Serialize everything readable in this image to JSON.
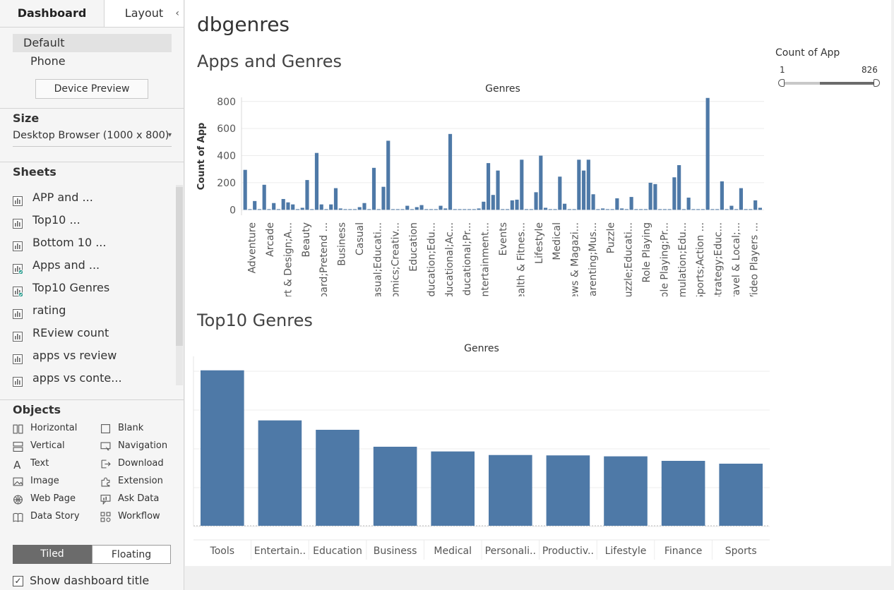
{
  "sidebar": {
    "tabs": {
      "dashboard": "Dashboard",
      "layout": "Layout"
    },
    "devices": [
      "Default",
      "Phone"
    ],
    "device_preview_label": "Device Preview",
    "size": {
      "heading": "Size",
      "value": "Desktop Browser (1000 x 800)"
    },
    "sheets_heading": "Sheets",
    "sheets": [
      {
        "label": "APP and ...",
        "used": false
      },
      {
        "label": "Top10 ...",
        "used": false
      },
      {
        "label": "Bottom 10 ...",
        "used": false
      },
      {
        "label": "Apps and ...",
        "used": true
      },
      {
        "label": "Top10 Genres",
        "used": true
      },
      {
        "label": "rating",
        "used": false
      },
      {
        "label": "REview count",
        "used": false
      },
      {
        "label": "apps vs review",
        "used": false
      },
      {
        "label": "apps vs conte...",
        "used": false
      }
    ],
    "objects_heading": "Objects",
    "objects_left": [
      {
        "label": "Horizontal",
        "icon": "horizontal-container-icon"
      },
      {
        "label": "Vertical",
        "icon": "vertical-container-icon"
      },
      {
        "label": "Text",
        "icon": "text-icon"
      },
      {
        "label": "Image",
        "icon": "image-icon"
      },
      {
        "label": "Web Page",
        "icon": "web-page-icon"
      },
      {
        "label": "Data Story",
        "icon": "data-story-icon"
      }
    ],
    "objects_right": [
      {
        "label": "Blank",
        "icon": "blank-icon"
      },
      {
        "label": "Navigation",
        "icon": "navigation-icon"
      },
      {
        "label": "Download",
        "icon": "download-icon"
      },
      {
        "label": "Extension",
        "icon": "extension-icon"
      },
      {
        "label": "Ask Data",
        "icon": "ask-data-icon"
      },
      {
        "label": "Workflow",
        "icon": "workflow-icon"
      }
    ],
    "tiled_label": "Tiled",
    "floating_label": "Floating",
    "show_title_label": "Show dashboard title",
    "show_title_checked": true
  },
  "dashboard": {
    "title": "dbgenres",
    "filter": {
      "title": "Count of App",
      "min": "1",
      "max": "826"
    }
  },
  "chart_data": [
    {
      "type": "bar",
      "title": "Apps and Genres",
      "header": "Genres",
      "ylabel": "Count of App",
      "ylim": [
        -40,
        830
      ],
      "yticks": [
        0,
        200,
        400,
        600,
        800
      ],
      "tick_labels": [
        "Adventure",
        "Arcade",
        "Art & Design;A...",
        "Beauty",
        "Board;Pretend ...",
        "Business",
        "Casual",
        "Casual;Educati...",
        "Comics;Creativ...",
        "Education",
        "Education;Edu...",
        "Educational;Ac...",
        "Educational;Pr...",
        "Entertainment...",
        "Events",
        "Health & Fitnes...",
        "Lifestyle",
        "Medical",
        "News & Magazi...",
        "Parenting;Mus...",
        "Puzzle",
        "Puzzle;Educati...",
        "Role Playing",
        "Role Playing;Pr...",
        "Simulation;Edu...",
        "Sports;Action ...",
        "Strategy;Educ...",
        "Travel & Local;...",
        "Video Players ..."
      ],
      "values": [
        295,
        5,
        65,
        5,
        185,
        5,
        50,
        5,
        80,
        55,
        40,
        5,
        15,
        220,
        5,
        420,
        40,
        5,
        40,
        160,
        10,
        5,
        5,
        5,
        20,
        50,
        5,
        310,
        5,
        170,
        510,
        5,
        5,
        5,
        30,
        5,
        20,
        35,
        5,
        5,
        5,
        30,
        10,
        560,
        5,
        5,
        5,
        5,
        5,
        10,
        60,
        345,
        110,
        290,
        5,
        5,
        70,
        75,
        370,
        5,
        5,
        130,
        400,
        15,
        5,
        5,
        245,
        45,
        5,
        5,
        370,
        290,
        370,
        115,
        5,
        10,
        5,
        5,
        85,
        10,
        5,
        95,
        5,
        5,
        5,
        200,
        190,
        5,
        5,
        5,
        240,
        330,
        5,
        90,
        5,
        5,
        5,
        826,
        5,
        5,
        210,
        5,
        30,
        5,
        160,
        5,
        5,
        70,
        15
      ],
      "color": "#4e79a7",
      "grid": true
    },
    {
      "type": "bar",
      "title": "Top10 Genres",
      "header": "Genres",
      "categories": [
        "Tools",
        "Entertain..",
        "Education",
        "Business",
        "Medical",
        "Personali..",
        "Productiv..",
        "Lifestyle",
        "Finance",
        "Sports"
      ],
      "values": [
        826,
        560,
        510,
        420,
        395,
        376,
        374,
        369,
        345,
        330
      ],
      "ylim": [
        0,
        900
      ],
      "color": "#4e79a7",
      "grid": true
    }
  ]
}
